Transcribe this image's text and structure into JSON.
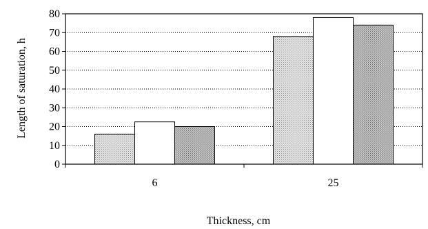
{
  "chart_data": {
    "type": "bar",
    "title": "",
    "xlabel": "Thickness, cm",
    "ylabel": "Length of saturation, h",
    "categories": [
      "6",
      "25"
    ],
    "series": [
      {
        "values": [
          16,
          68
        ],
        "fill": "light-gray-dotted"
      },
      {
        "values": [
          22.5,
          78
        ],
        "fill": "white"
      },
      {
        "values": [
          20,
          74
        ],
        "fill": "gray-crosshatch"
      }
    ],
    "ylim": [
      0,
      80
    ],
    "yticks": [
      0,
      10,
      20,
      30,
      40,
      50,
      60,
      70,
      80
    ],
    "grid": "horizontal-dotted",
    "legend": "none"
  }
}
